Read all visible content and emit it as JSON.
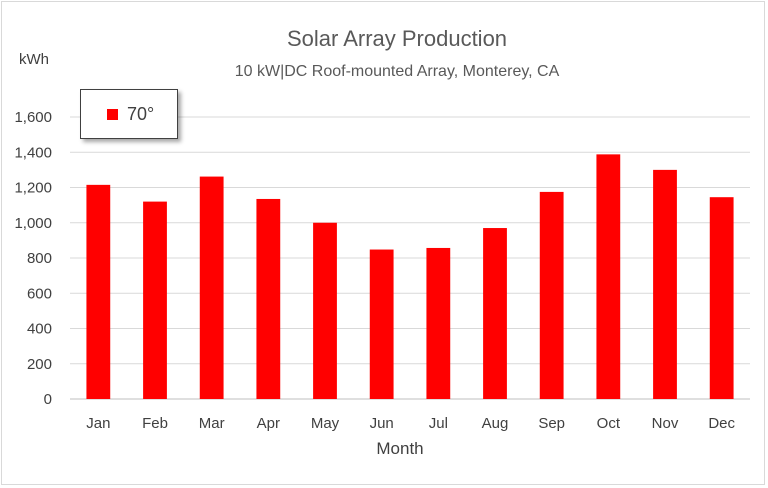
{
  "chart_data": {
    "type": "bar",
    "title": "Solar Array Production",
    "subtitle": "10 kW|DC Roof-mounted Array, Monterey, CA",
    "xlabel": "Month",
    "ylabel": "kWh",
    "ylim": [
      0,
      1600
    ],
    "yticks": [
      0,
      200,
      400,
      600,
      800,
      1000,
      1200,
      1400,
      1600
    ],
    "ytick_labels": [
      "0",
      "200",
      "400",
      "600",
      "800",
      "1,000",
      "1,200",
      "1,400",
      "1,600"
    ],
    "grid": true,
    "legend_position": "top-left",
    "categories": [
      "Jan",
      "Feb",
      "Mar",
      "Apr",
      "May",
      "Jun",
      "Jul",
      "Aug",
      "Sep",
      "Oct",
      "Nov",
      "Dec"
    ],
    "series": [
      {
        "name": "70°",
        "color": "#ff0000",
        "values": [
          1215,
          1120,
          1262,
          1135,
          1000,
          848,
          857,
          970,
          1175,
          1388,
          1300,
          1145
        ]
      }
    ]
  }
}
